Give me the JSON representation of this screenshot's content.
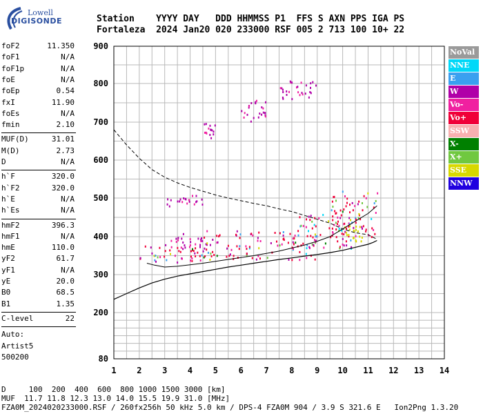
{
  "logo": {
    "line1": "Lowell",
    "line2": "DIGISONDE"
  },
  "header": {
    "line1": "Station    YYYY DAY   DDD HHMMSS P1  FFS S AXN PPS IGA PS",
    "line2": "Fortaleza  2024 Jan20 020 233000 RSF 005 2 713 100 10+ 22"
  },
  "params": {
    "group1": [
      {
        "k": "foF2",
        "v": "11.350"
      },
      {
        "k": "foF1",
        "v": "N/A"
      },
      {
        "k": "foF1p",
        "v": "N/A"
      },
      {
        "k": "foE",
        "v": "N/A"
      },
      {
        "k": "foEp",
        "v": "0.54"
      },
      {
        "k": "fxI",
        "v": "11.90"
      },
      {
        "k": "foEs",
        "v": "N/A"
      },
      {
        "k": "fmin",
        "v": "2.10"
      }
    ],
    "group2": [
      {
        "k": "MUF(D)",
        "v": "31.01"
      },
      {
        "k": "M(D)",
        "v": "2.73"
      },
      {
        "k": "D",
        "v": "N/A"
      }
    ],
    "group3": [
      {
        "k": "h`F",
        "v": "320.0"
      },
      {
        "k": "h`F2",
        "v": "320.0"
      },
      {
        "k": "h`E",
        "v": "N/A"
      },
      {
        "k": "h`Es",
        "v": "N/A"
      }
    ],
    "group4": [
      {
        "k": "hmF2",
        "v": "396.3"
      },
      {
        "k": "hmF1",
        "v": "N/A"
      },
      {
        "k": "hmE",
        "v": "110.0"
      },
      {
        "k": "yF2",
        "v": "61.7"
      },
      {
        "k": "yF1",
        "v": "N/A"
      },
      {
        "k": "yE",
        "v": "20.0"
      },
      {
        "k": "B0",
        "v": "68.5"
      },
      {
        "k": "B1",
        "v": "1.35"
      }
    ],
    "group5": [
      {
        "k": "C-level",
        "v": "22"
      }
    ],
    "auto": [
      "Auto:",
      "Artist5",
      "500200"
    ]
  },
  "footer": {
    "line1": "D     100  200  400  600  800 1000 1500 3000 [km]",
    "line2": "MUF  11.7 11.8 12.3 13.0 14.0 15.5 19.9 31.0 [MHz]",
    "line3": "FZA0M_2024020233000.RSF / 260fx256h 50 kHz 5.0 km / DPS-4 FZA0M 904 / 3.9 S 321.6 E   Ion2Png 1.3.20"
  },
  "legend": [
    {
      "label": "NoVal",
      "color": "#9a9a9a"
    },
    {
      "label": "NNE",
      "color": "#00d8f8"
    },
    {
      "label": "E",
      "color": "#3aa0f0"
    },
    {
      "label": "W",
      "color": "#b000a8"
    },
    {
      "label": "Vo-",
      "color": "#f020a0"
    },
    {
      "label": "Vo+",
      "color": "#f00038"
    },
    {
      "label": "SSW",
      "color": "#f8b0b0"
    },
    {
      "label": "X-",
      "color": "#008000"
    },
    {
      "label": "X+",
      "color": "#70c840"
    },
    {
      "label": "SSE",
      "color": "#d8d800"
    },
    {
      "label": "NNW",
      "color": "#2000e0"
    }
  ],
  "chart_data": {
    "type": "scatter",
    "title": "",
    "xlabel": "",
    "ylabel": "",
    "xlim": [
      1,
      14
    ],
    "ylim": [
      80,
      900
    ],
    "x_ticks": [
      1,
      2,
      3,
      4,
      5,
      6,
      7,
      8,
      9,
      10,
      11,
      12,
      13,
      14
    ],
    "y_ticks": [
      80,
      200,
      300,
      400,
      500,
      600,
      700,
      800,
      900
    ],
    "y_scale": "log-like (height km)",
    "grid": true,
    "legend_position": "right",
    "x_minor_step": 0.5,
    "y_gridlines": [
      100,
      120,
      140,
      160,
      180,
      200,
      250,
      300,
      350,
      400,
      450,
      500,
      550,
      600,
      650,
      700,
      750,
      800,
      850,
      900
    ],
    "trace_colors": [
      "#f00038",
      "#f020a0",
      "#b000a8",
      "#3aa0f0",
      "#d8d800",
      "#70c840",
      "#00d8f8",
      "#008000"
    ],
    "lines": {
      "upper_dashed": {
        "x": [
          1.0,
          1.5,
          2.0,
          2.5,
          3.0,
          3.5,
          4.0,
          4.5,
          5.0,
          5.5,
          6.0,
          6.5,
          7.0,
          7.5,
          8.0,
          8.5,
          9.0,
          9.5,
          10.0,
          10.5,
          11.0,
          11.3
        ],
        "y": [
          680,
          640,
          605,
          575,
          555,
          540,
          528,
          518,
          508,
          500,
          493,
          486,
          480,
          472,
          465,
          455,
          445,
          435,
          420,
          410,
          405,
          395
        ]
      },
      "profile_solid": {
        "x": [
          1.0,
          1.5,
          2.0,
          2.5,
          3.0,
          3.5,
          4.0,
          4.5,
          5.0,
          5.5,
          6.0,
          6.5,
          7.0,
          7.5,
          8.0,
          8.5,
          9.0,
          9.5,
          10.0,
          10.5,
          11.0,
          11.2,
          11.35
        ],
        "y": [
          235,
          250,
          265,
          278,
          288,
          296,
          302,
          308,
          314,
          320,
          325,
          330,
          335,
          340,
          344,
          349,
          353,
          358,
          364,
          372,
          380,
          385,
          390
        ]
      },
      "trace_solid": {
        "x": [
          2.3,
          2.6,
          3.0,
          3.5,
          4.0,
          4.5,
          5.0,
          5.5,
          6.0,
          6.5,
          7.0,
          7.5,
          8.0,
          8.5,
          9.0,
          9.5,
          10.0,
          10.5,
          11.0,
          11.35
        ],
        "y": [
          330,
          325,
          320,
          322,
          326,
          330,
          335,
          340,
          345,
          350,
          356,
          362,
          370,
          378,
          388,
          400,
          420,
          440,
          460,
          480
        ]
      }
    },
    "scatter_clusters": [
      {
        "x": [
          2.0,
          4.5
        ],
        "y": [
          330,
          380
        ],
        "color_set": "all"
      },
      {
        "x": [
          3.0,
          5.0
        ],
        "y": [
          370,
          410
        ],
        "color_set": "magenta"
      },
      {
        "x": [
          4.5,
          9.0
        ],
        "y": [
          340,
          420
        ],
        "color_set": "all"
      },
      {
        "x": [
          8.0,
          10.5
        ],
        "y": [
          370,
          460
        ],
        "color_set": "all"
      },
      {
        "x": [
          9.5,
          11.4
        ],
        "y": [
          400,
          520
        ],
        "color_set": "all"
      },
      {
        "x": [
          3.0,
          4.5
        ],
        "y": [
          480,
          510
        ],
        "color_set": "magenta"
      },
      {
        "x": [
          4.5,
          5.0
        ],
        "y": [
          660,
          700
        ],
        "color_set": "magenta"
      },
      {
        "x": [
          6.0,
          7.0
        ],
        "y": [
          700,
          760
        ],
        "color_set": "magenta"
      },
      {
        "x": [
          7.5,
          9.0
        ],
        "y": [
          760,
          810
        ],
        "color_set": "magenta"
      },
      {
        "x": [
          10.0,
          10.8
        ],
        "y": [
          390,
          430
        ],
        "color_set": "yellow"
      }
    ]
  }
}
